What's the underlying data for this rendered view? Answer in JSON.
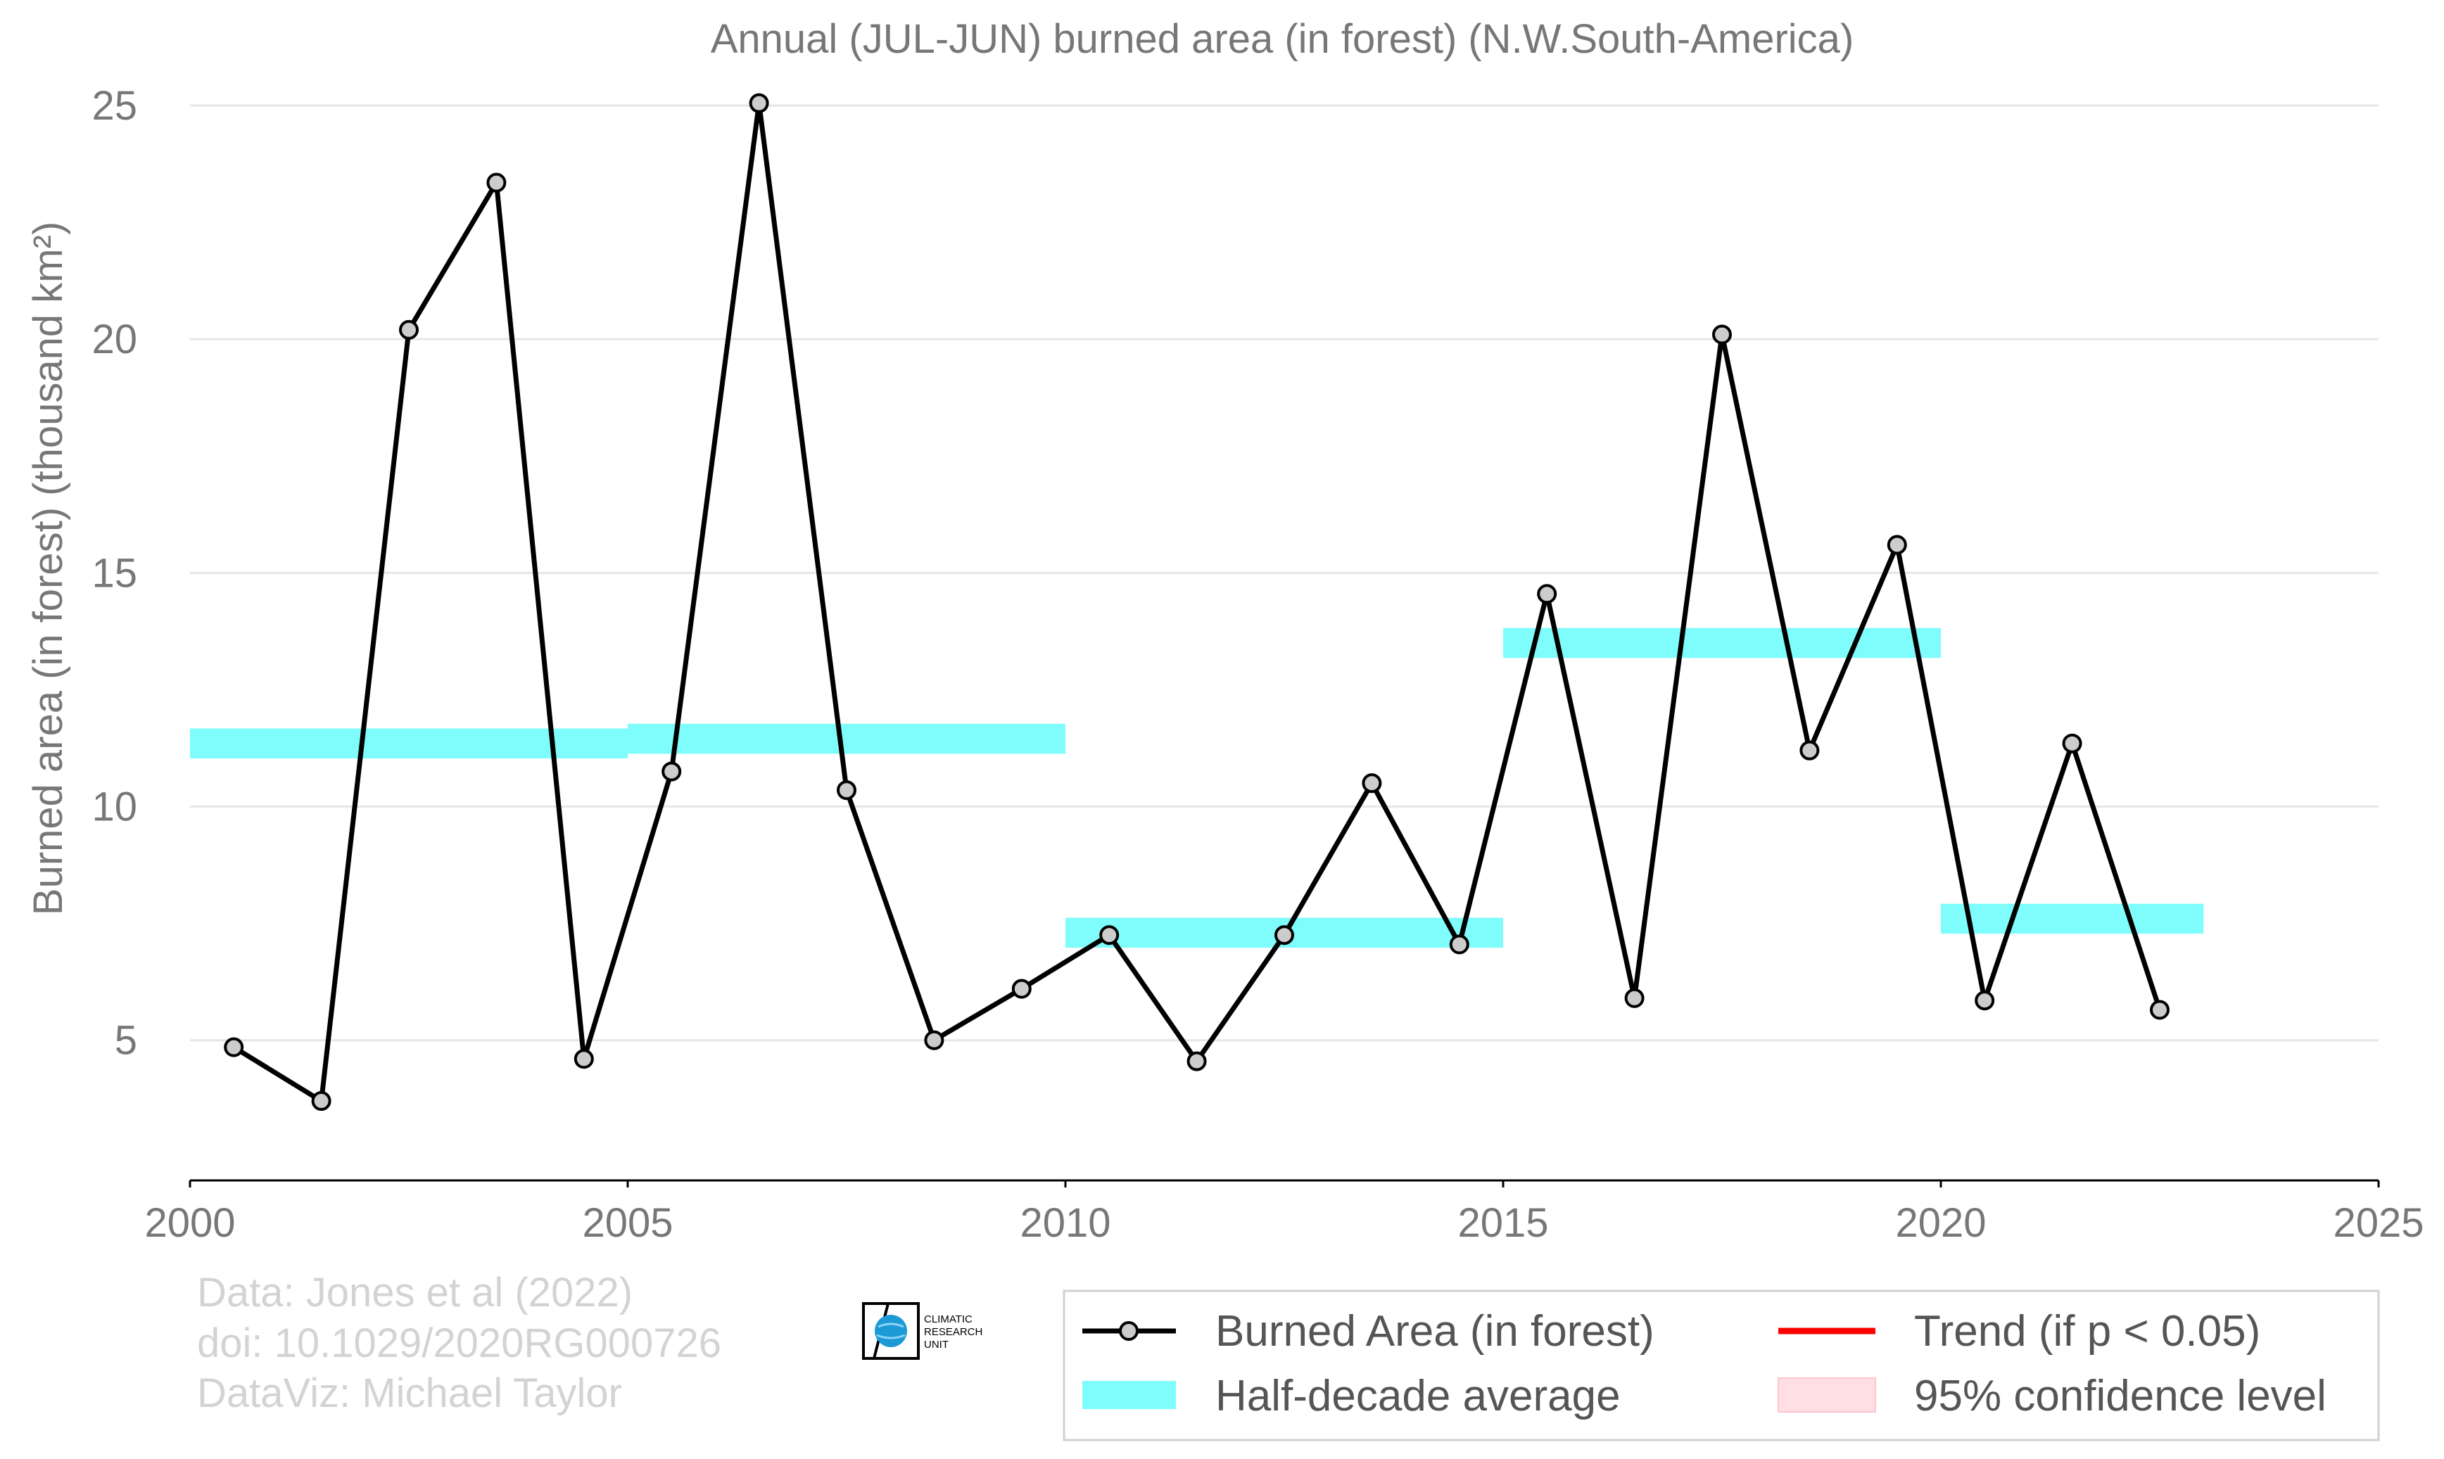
{
  "chart_data": {
    "type": "line",
    "title": "Annual (JUL-JUN) burned area (in forest) (N.W.South-America)",
    "xlabel": "",
    "ylabel": "Burned area (in forest) (thousand km²)",
    "xlim": [
      2000,
      2025
    ],
    "ylim": [
      2,
      25
    ],
    "x_ticks": [
      "2000",
      "2005",
      "2010",
      "2015",
      "2020",
      "2025"
    ],
    "y_ticks": [
      "5",
      "10",
      "15",
      "20",
      "25"
    ],
    "grid": "horizontal",
    "legend_position": "bottom-right",
    "series": [
      {
        "name": "Burned Area (in forest)",
        "color": "#000000",
        "marker_color": "#cccccc",
        "x": [
          2000.5,
          2001.5,
          2002.5,
          2003.5,
          2004.5,
          2005.5,
          2006.5,
          2007.5,
          2008.5,
          2009.5,
          2010.5,
          2011.5,
          2012.5,
          2013.5,
          2014.5,
          2015.5,
          2016.5,
          2017.5,
          2018.5,
          2019.5,
          2020.5,
          2021.5,
          2022.5
        ],
        "values": [
          4.85,
          3.7,
          20.2,
          23.35,
          4.6,
          10.75,
          25.05,
          10.35,
          5.0,
          6.1,
          7.25,
          4.55,
          7.25,
          10.5,
          7.05,
          14.55,
          5.9,
          20.1,
          11.2,
          15.6,
          5.85,
          11.35,
          5.65
        ]
      },
      {
        "name": "Half-decade average",
        "color": "#7ffcfc",
        "segments": [
          {
            "x0": 2000,
            "x1": 2005,
            "value": 11.35
          },
          {
            "x0": 2005,
            "x1": 2010,
            "value": 11.45
          },
          {
            "x0": 2010,
            "x1": 2015,
            "value": 7.3
          },
          {
            "x0": 2015,
            "x1": 2020,
            "value": 13.5
          },
          {
            "x0": 2020,
            "x1": 2023,
            "value": 7.6
          }
        ]
      }
    ],
    "legend": [
      {
        "label": "Burned Area (in forest)",
        "kind": "line-marker",
        "color": "#000000"
      },
      {
        "label": "Trend (if p < 0.05)",
        "kind": "line",
        "color": "#ff0000"
      },
      {
        "label": "Half-decade average",
        "kind": "band",
        "color": "#7ffcfc"
      },
      {
        "label": "95% confidence level",
        "kind": "patch",
        "color": "#ffdfe3"
      }
    ]
  },
  "credits": {
    "line1": "Data: Jones et al (2022)",
    "line2": "doi: 10.1029/2020RG000726",
    "line3": "DataViz: Michael Taylor"
  },
  "logo": {
    "line1": "CLIMATIC",
    "line2": "RESEARCH",
    "line3": "UNIT"
  }
}
